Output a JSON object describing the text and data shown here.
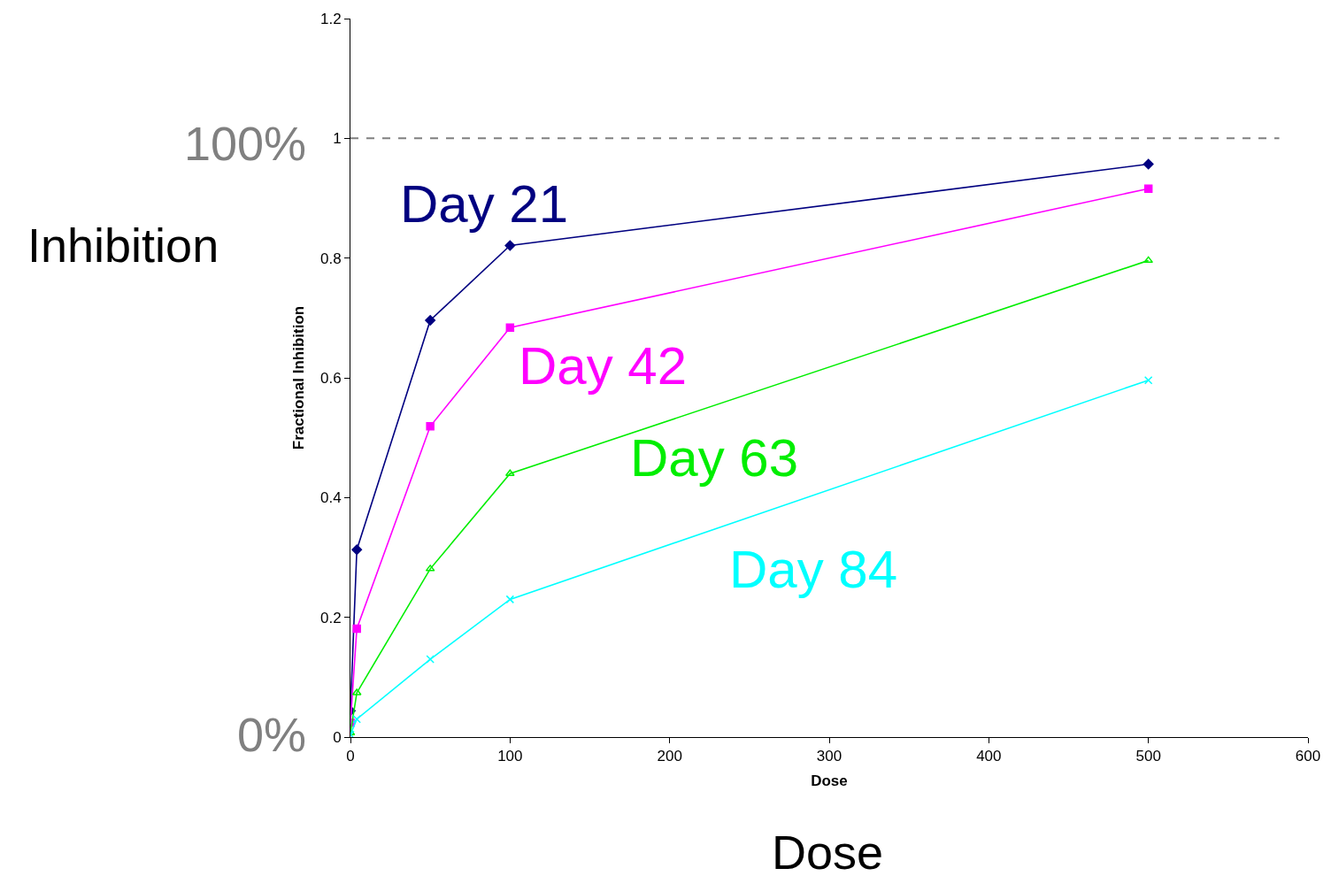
{
  "chart_data": {
    "type": "line",
    "xlabel": "Dose",
    "ylabel": "Fractional Inhibition",
    "xlim": [
      0,
      600
    ],
    "xticks": [
      0,
      100,
      200,
      300,
      400,
      500,
      600
    ],
    "ylim": [
      0,
      1.2
    ],
    "yticks": [
      0,
      0.2,
      0.4,
      0.6,
      0.8,
      1,
      1.2
    ],
    "x": [
      0,
      4,
      50,
      100,
      500
    ],
    "series": [
      {
        "name": "Day 21",
        "color": "#000080",
        "marker": "diamond",
        "values": [
          0.044,
          0.313,
          0.696,
          0.821,
          0.957
        ]
      },
      {
        "name": "Day 42",
        "color": "#ff00ff",
        "marker": "square",
        "values": [
          0.024,
          0.181,
          0.519,
          0.684,
          0.916
        ]
      },
      {
        "name": "Day 63",
        "color": "#00ee00",
        "marker": "triangle",
        "values": [
          0.007,
          0.074,
          0.281,
          0.44,
          0.796
        ]
      },
      {
        "name": "Day 84",
        "color": "#00ffff",
        "marker": "cross",
        "values": [
          0.004,
          0.03,
          0.13,
          0.23,
          0.596
        ]
      }
    ],
    "ref_lines": [
      {
        "axis": "y",
        "value": 1,
        "color": "#808080",
        "line_style": "dashed"
      }
    ],
    "annotations": [
      "100%",
      "0%",
      "Inhibition",
      "Dose"
    ],
    "legend": false,
    "line_style": "solid"
  }
}
